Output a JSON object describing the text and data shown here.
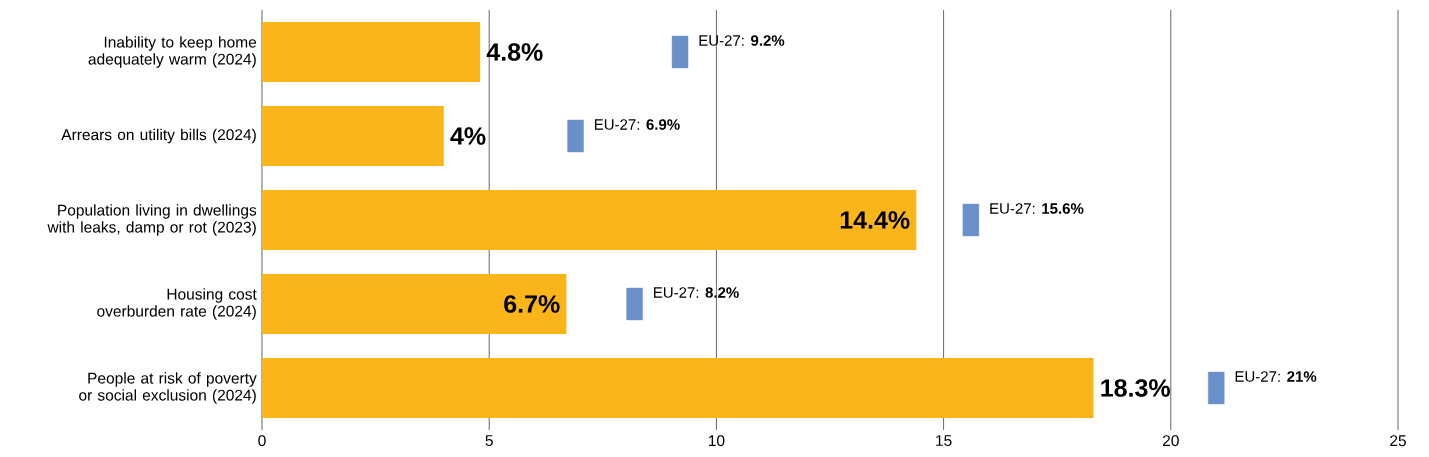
{
  "chart_data": {
    "type": "bar",
    "orientation": "horizontal",
    "categories": [
      "Inability to keep home adequately warm (2024)",
      "Arrears on utility bills (2024)",
      "Population living in dwellings with leaks, damp or rot (2023)",
      "Housing cost overburden rate (2024)",
      "People at risk of poverty or social exclusion (2024)"
    ],
    "series": [
      {
        "color": "#f9b51a",
        "values": [
          4.8,
          4,
          14.4,
          6.7,
          18.3
        ],
        "value_labels": [
          "4.8%",
          "4%",
          "14.4%",
          "6.7%",
          "18.3%"
        ]
      },
      {
        "type": "scatter",
        "marker": "square",
        "color": "#6b8fc9",
        "values": [
          9.2,
          6.9,
          15.6,
          8.2,
          21
        ],
        "value_labels": [
          "EU-27: **9.2%**",
          "EU-27: **6.9%**",
          "EU-27: **15.6%**",
          "EU-27: **8.2%**",
          "EU-27: **21%**"
        ]
      }
    ],
    "xlim": [
      0,
      25
    ],
    "xticks": [
      0,
      5,
      10,
      15,
      20,
      25
    ],
    "grid": "x"
  }
}
